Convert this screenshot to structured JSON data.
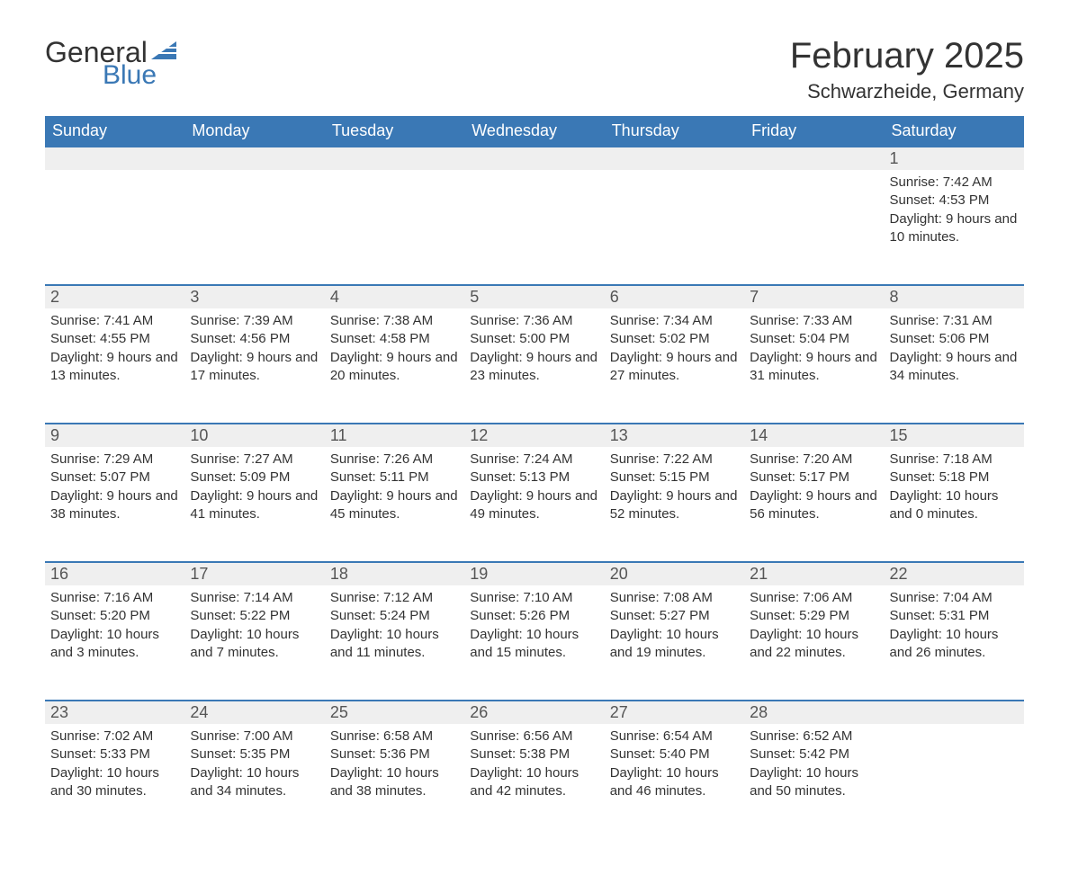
{
  "logo": {
    "general": "General",
    "blue": "Blue"
  },
  "title": "February 2025",
  "location": "Schwarzheide, Germany",
  "colors": {
    "header_bg": "#3a78b5",
    "header_text": "#ffffff",
    "daynum_bg": "#efefef",
    "daynum_border": "#3a78b5",
    "text": "#333333",
    "logo_blue": "#3a78b5"
  },
  "day_headers": [
    "Sunday",
    "Monday",
    "Tuesday",
    "Wednesday",
    "Thursday",
    "Friday",
    "Saturday"
  ],
  "sunrise_label": "Sunrise",
  "sunset_label": "Sunset",
  "daylight_label": "Daylight",
  "weeks": [
    [
      null,
      null,
      null,
      null,
      null,
      null,
      {
        "num": "1",
        "sunrise": "7:42 AM",
        "sunset": "4:53 PM",
        "daylight": "9 hours and 10 minutes."
      }
    ],
    [
      {
        "num": "2",
        "sunrise": "7:41 AM",
        "sunset": "4:55 PM",
        "daylight": "9 hours and 13 minutes."
      },
      {
        "num": "3",
        "sunrise": "7:39 AM",
        "sunset": "4:56 PM",
        "daylight": "9 hours and 17 minutes."
      },
      {
        "num": "4",
        "sunrise": "7:38 AM",
        "sunset": "4:58 PM",
        "daylight": "9 hours and 20 minutes."
      },
      {
        "num": "5",
        "sunrise": "7:36 AM",
        "sunset": "5:00 PM",
        "daylight": "9 hours and 23 minutes."
      },
      {
        "num": "6",
        "sunrise": "7:34 AM",
        "sunset": "5:02 PM",
        "daylight": "9 hours and 27 minutes."
      },
      {
        "num": "7",
        "sunrise": "7:33 AM",
        "sunset": "5:04 PM",
        "daylight": "9 hours and 31 minutes."
      },
      {
        "num": "8",
        "sunrise": "7:31 AM",
        "sunset": "5:06 PM",
        "daylight": "9 hours and 34 minutes."
      }
    ],
    [
      {
        "num": "9",
        "sunrise": "7:29 AM",
        "sunset": "5:07 PM",
        "daylight": "9 hours and 38 minutes."
      },
      {
        "num": "10",
        "sunrise": "7:27 AM",
        "sunset": "5:09 PM",
        "daylight": "9 hours and 41 minutes."
      },
      {
        "num": "11",
        "sunrise": "7:26 AM",
        "sunset": "5:11 PM",
        "daylight": "9 hours and 45 minutes."
      },
      {
        "num": "12",
        "sunrise": "7:24 AM",
        "sunset": "5:13 PM",
        "daylight": "9 hours and 49 minutes."
      },
      {
        "num": "13",
        "sunrise": "7:22 AM",
        "sunset": "5:15 PM",
        "daylight": "9 hours and 52 minutes."
      },
      {
        "num": "14",
        "sunrise": "7:20 AM",
        "sunset": "5:17 PM",
        "daylight": "9 hours and 56 minutes."
      },
      {
        "num": "15",
        "sunrise": "7:18 AM",
        "sunset": "5:18 PM",
        "daylight": "10 hours and 0 minutes."
      }
    ],
    [
      {
        "num": "16",
        "sunrise": "7:16 AM",
        "sunset": "5:20 PM",
        "daylight": "10 hours and 3 minutes."
      },
      {
        "num": "17",
        "sunrise": "7:14 AM",
        "sunset": "5:22 PM",
        "daylight": "10 hours and 7 minutes."
      },
      {
        "num": "18",
        "sunrise": "7:12 AM",
        "sunset": "5:24 PM",
        "daylight": "10 hours and 11 minutes."
      },
      {
        "num": "19",
        "sunrise": "7:10 AM",
        "sunset": "5:26 PM",
        "daylight": "10 hours and 15 minutes."
      },
      {
        "num": "20",
        "sunrise": "7:08 AM",
        "sunset": "5:27 PM",
        "daylight": "10 hours and 19 minutes."
      },
      {
        "num": "21",
        "sunrise": "7:06 AM",
        "sunset": "5:29 PM",
        "daylight": "10 hours and 22 minutes."
      },
      {
        "num": "22",
        "sunrise": "7:04 AM",
        "sunset": "5:31 PM",
        "daylight": "10 hours and 26 minutes."
      }
    ],
    [
      {
        "num": "23",
        "sunrise": "7:02 AM",
        "sunset": "5:33 PM",
        "daylight": "10 hours and 30 minutes."
      },
      {
        "num": "24",
        "sunrise": "7:00 AM",
        "sunset": "5:35 PM",
        "daylight": "10 hours and 34 minutes."
      },
      {
        "num": "25",
        "sunrise": "6:58 AM",
        "sunset": "5:36 PM",
        "daylight": "10 hours and 38 minutes."
      },
      {
        "num": "26",
        "sunrise": "6:56 AM",
        "sunset": "5:38 PM",
        "daylight": "10 hours and 42 minutes."
      },
      {
        "num": "27",
        "sunrise": "6:54 AM",
        "sunset": "5:40 PM",
        "daylight": "10 hours and 46 minutes."
      },
      {
        "num": "28",
        "sunrise": "6:52 AM",
        "sunset": "5:42 PM",
        "daylight": "10 hours and 50 minutes."
      },
      null
    ]
  ]
}
